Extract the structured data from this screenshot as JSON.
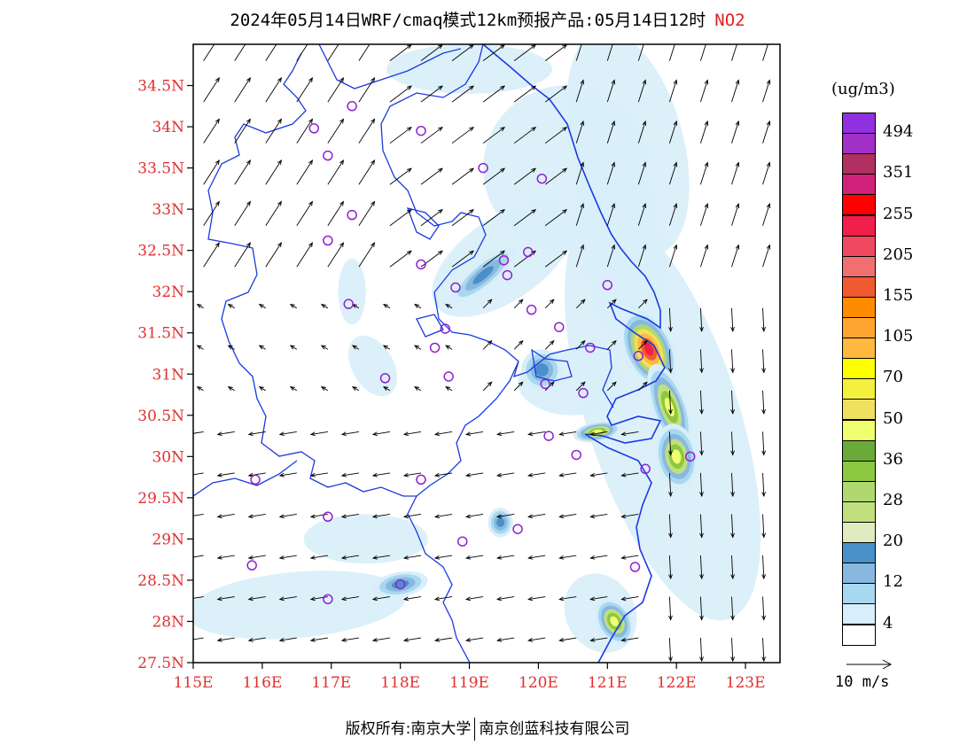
{
  "title": {
    "main": "2024年05月14日WRF/cmaq模式12km预报产品:05月14日12时",
    "pollutant": "NO2",
    "pollutant_color": "#e02020"
  },
  "map": {
    "lon_range": [
      115,
      123.5
    ],
    "lat_range": [
      27.5,
      35
    ],
    "lon_ticks": [
      "115E",
      "116E",
      "117E",
      "118E",
      "119E",
      "120E",
      "121E",
      "122E",
      "123E"
    ],
    "lon_values": [
      115,
      116,
      117,
      118,
      119,
      120,
      121,
      122,
      123
    ],
    "lat_ticks": [
      "27.5N",
      "28N",
      "28.5N",
      "29N",
      "29.5N",
      "30N",
      "30.5N",
      "31N",
      "31.5N",
      "32N",
      "32.5N",
      "33N",
      "33.5N",
      "34N",
      "34.5N"
    ],
    "lat_values": [
      27.5,
      28,
      28.5,
      29,
      29.5,
      30,
      30.5,
      31,
      31.5,
      32,
      32.5,
      33,
      33.5,
      34,
      34.5
    ],
    "boundary_color": "#1a3ae0",
    "station_color": "#9020d0",
    "tick_label_color": "#e03030"
  },
  "legend": {
    "unit": "(ug/m3)",
    "colors": [
      "#9030e0",
      "#a030c8",
      "#b03060",
      "#d0207a",
      "#ff0000",
      "#f0204a",
      "#f04860",
      "#f07070",
      "#f05a30",
      "#ff8c00",
      "#ffa530",
      "#ffb840",
      "#ffff00",
      "#f5f040",
      "#f0e060",
      "#f0ff70",
      "#6aaa3a",
      "#8cc840",
      "#b0d870",
      "#c0e080",
      "#e0ecc0",
      "#4a90c8",
      "#88b8e0",
      "#a8d8f0",
      "#d8eefa",
      "#ffffff"
    ],
    "labels": [
      {
        "text": "494",
        "index": 1
      },
      {
        "text": "351",
        "index": 3
      },
      {
        "text": "255",
        "index": 5
      },
      {
        "text": "205",
        "index": 7
      },
      {
        "text": "155",
        "index": 9
      },
      {
        "text": "105",
        "index": 11
      },
      {
        "text": "70",
        "index": 13
      },
      {
        "text": "50",
        "index": 15
      },
      {
        "text": "36",
        "index": 17
      },
      {
        "text": "28",
        "index": 19
      },
      {
        "text": "20",
        "index": 21
      },
      {
        "text": "12",
        "index": 23
      },
      {
        "text": "4",
        "index": 25
      }
    ]
  },
  "wind_reference": {
    "label": "10 m/s"
  },
  "copyright": {
    "left": "版权所有:南京大学",
    "right": "南京创蓝科技有限公司"
  },
  "stations": [
    [
      117.3,
      34.25
    ],
    [
      116.75,
      33.98
    ],
    [
      118.3,
      33.95
    ],
    [
      116.95,
      33.65
    ],
    [
      119.2,
      33.5
    ],
    [
      120.05,
      33.37
    ],
    [
      117.3,
      32.93
    ],
    [
      116.95,
      32.62
    ],
    [
      118.3,
      32.33
    ],
    [
      119.5,
      32.38
    ],
    [
      119.85,
      32.48
    ],
    [
      119.55,
      32.2
    ],
    [
      118.8,
      32.05
    ],
    [
      117.25,
      31.85
    ],
    [
      119.9,
      31.78
    ],
    [
      120.3,
      31.57
    ],
    [
      118.65,
      31.55
    ],
    [
      118.5,
      31.32
    ],
    [
      120.75,
      31.32
    ],
    [
      121.45,
      31.22
    ],
    [
      121.0,
      32.08
    ],
    [
      117.78,
      30.95
    ],
    [
      118.7,
      30.97
    ],
    [
      120.1,
      30.88
    ],
    [
      120.65,
      30.77
    ],
    [
      120.15,
      30.25
    ],
    [
      120.55,
      30.02
    ],
    [
      121.55,
      29.85
    ],
    [
      122.2,
      30.0
    ],
    [
      115.9,
      29.72
    ],
    [
      118.3,
      29.72
    ],
    [
      116.95,
      29.27
    ],
    [
      118.9,
      28.97
    ],
    [
      119.7,
      29.12
    ],
    [
      115.85,
      28.68
    ],
    [
      121.4,
      28.66
    ],
    [
      118.0,
      28.45
    ],
    [
      116.95,
      28.27
    ]
  ],
  "no2_blobs": [
    {
      "lon": 121.6,
      "lat": 31.3,
      "rx": 0.35,
      "ry": 0.5,
      "rot": -25,
      "level": "high"
    },
    {
      "lon": 121.9,
      "lat": 30.6,
      "rx": 0.25,
      "ry": 0.55,
      "rot": -20,
      "level": "mid"
    },
    {
      "lon": 122.0,
      "lat": 30.0,
      "rx": 0.3,
      "ry": 0.4,
      "rot": -10,
      "level": "mid"
    },
    {
      "lon": 120.85,
      "lat": 30.3,
      "rx": 0.35,
      "ry": 0.12,
      "rot": -10,
      "level": "mid"
    },
    {
      "lon": 121.1,
      "lat": 28.0,
      "rx": 0.25,
      "ry": 0.3,
      "rot": -30,
      "level": "mid"
    },
    {
      "lon": 119.45,
      "lat": 29.2,
      "rx": 0.18,
      "ry": 0.18,
      "rot": 0,
      "level": "low"
    },
    {
      "lon": 119.2,
      "lat": 32.2,
      "rx": 0.6,
      "ry": 0.15,
      "rot": -40,
      "level": "low"
    },
    {
      "lon": 120.05,
      "lat": 31.05,
      "rx": 0.3,
      "ry": 0.25,
      "rot": 0,
      "level": "low"
    },
    {
      "lon": 118.0,
      "lat": 28.45,
      "rx": 0.4,
      "ry": 0.15,
      "rot": -10,
      "level": "low"
    }
  ]
}
